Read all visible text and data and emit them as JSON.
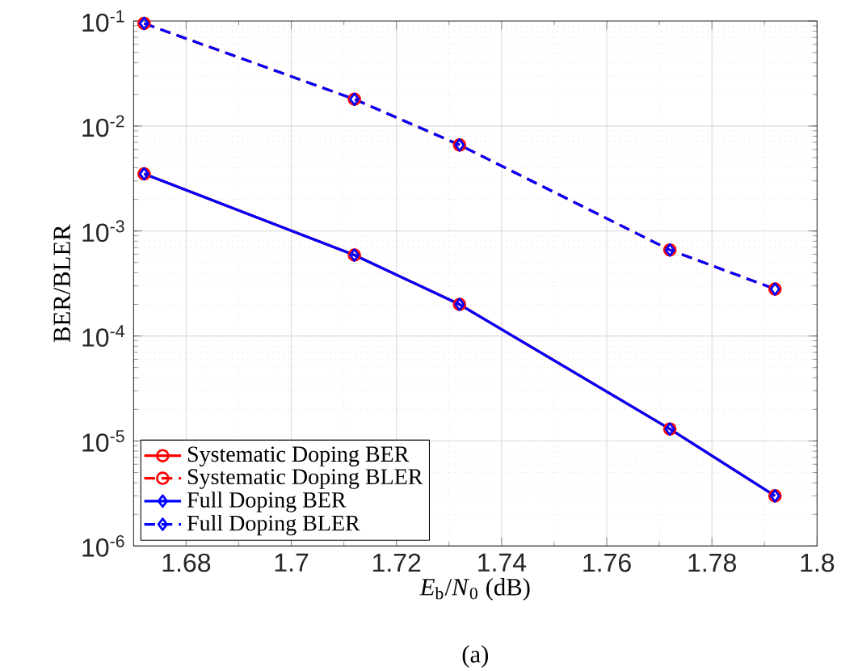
{
  "chart_data": {
    "type": "line",
    "xlabel": "*E*$_{b}$/*N*$_{0}$ (dB)",
    "ylabel": "BER/BLER",
    "log": "y",
    "grid": true,
    "legend": "bottom left",
    "x": [
      1.672,
      1.712,
      1.732,
      1.772,
      1.792
    ],
    "xlim": [
      1.67,
      1.8
    ],
    "xticks": [
      1.68,
      1.7,
      1.72,
      1.74,
      1.76,
      1.78,
      1.8
    ],
    "ylim": [
      1e-06,
      0.1
    ],
    "yticks": [
      {
        "value": 1e-06,
        "label": "10$^{-6}$"
      },
      {
        "value": 1e-05,
        "label": "10$^{-5}$"
      },
      {
        "value": 0.0001,
        "label": "10$^{-4}$"
      },
      {
        "value": 0.001,
        "label": "10$^{-3}$"
      },
      {
        "value": 0.01,
        "label": "10$^{-2}$"
      },
      {
        "value": 0.1,
        "label": "10$^{-1}$"
      }
    ],
    "series": [
      {
        "name": "Systematic Doping BER",
        "color": "#ff0000",
        "marker": "circle",
        "line_style": "solid",
        "values": [
          0.0035,
          0.00059,
          0.0002,
          1.3e-05,
          3e-06
        ]
      },
      {
        "name": "Systematic Doping BLER",
        "color": "#ff0000",
        "marker": "circle",
        "line_style": "dashed",
        "values": [
          0.095,
          0.018,
          0.0066,
          0.00066,
          0.00028
        ]
      },
      {
        "name": "Full Doping BER",
        "color": "#0000ff",
        "marker": "diamond",
        "line_style": "solid",
        "values": [
          0.0035,
          0.00059,
          0.0002,
          1.3e-05,
          3e-06
        ]
      },
      {
        "name": "Full Doping BLER",
        "color": "#0000ff",
        "marker": "diamond",
        "line_style": "dashed",
        "values": [
          0.095,
          0.018,
          0.0066,
          0.00066,
          0.00028
        ]
      }
    ],
    "annotations": [
      "(a)"
    ]
  }
}
